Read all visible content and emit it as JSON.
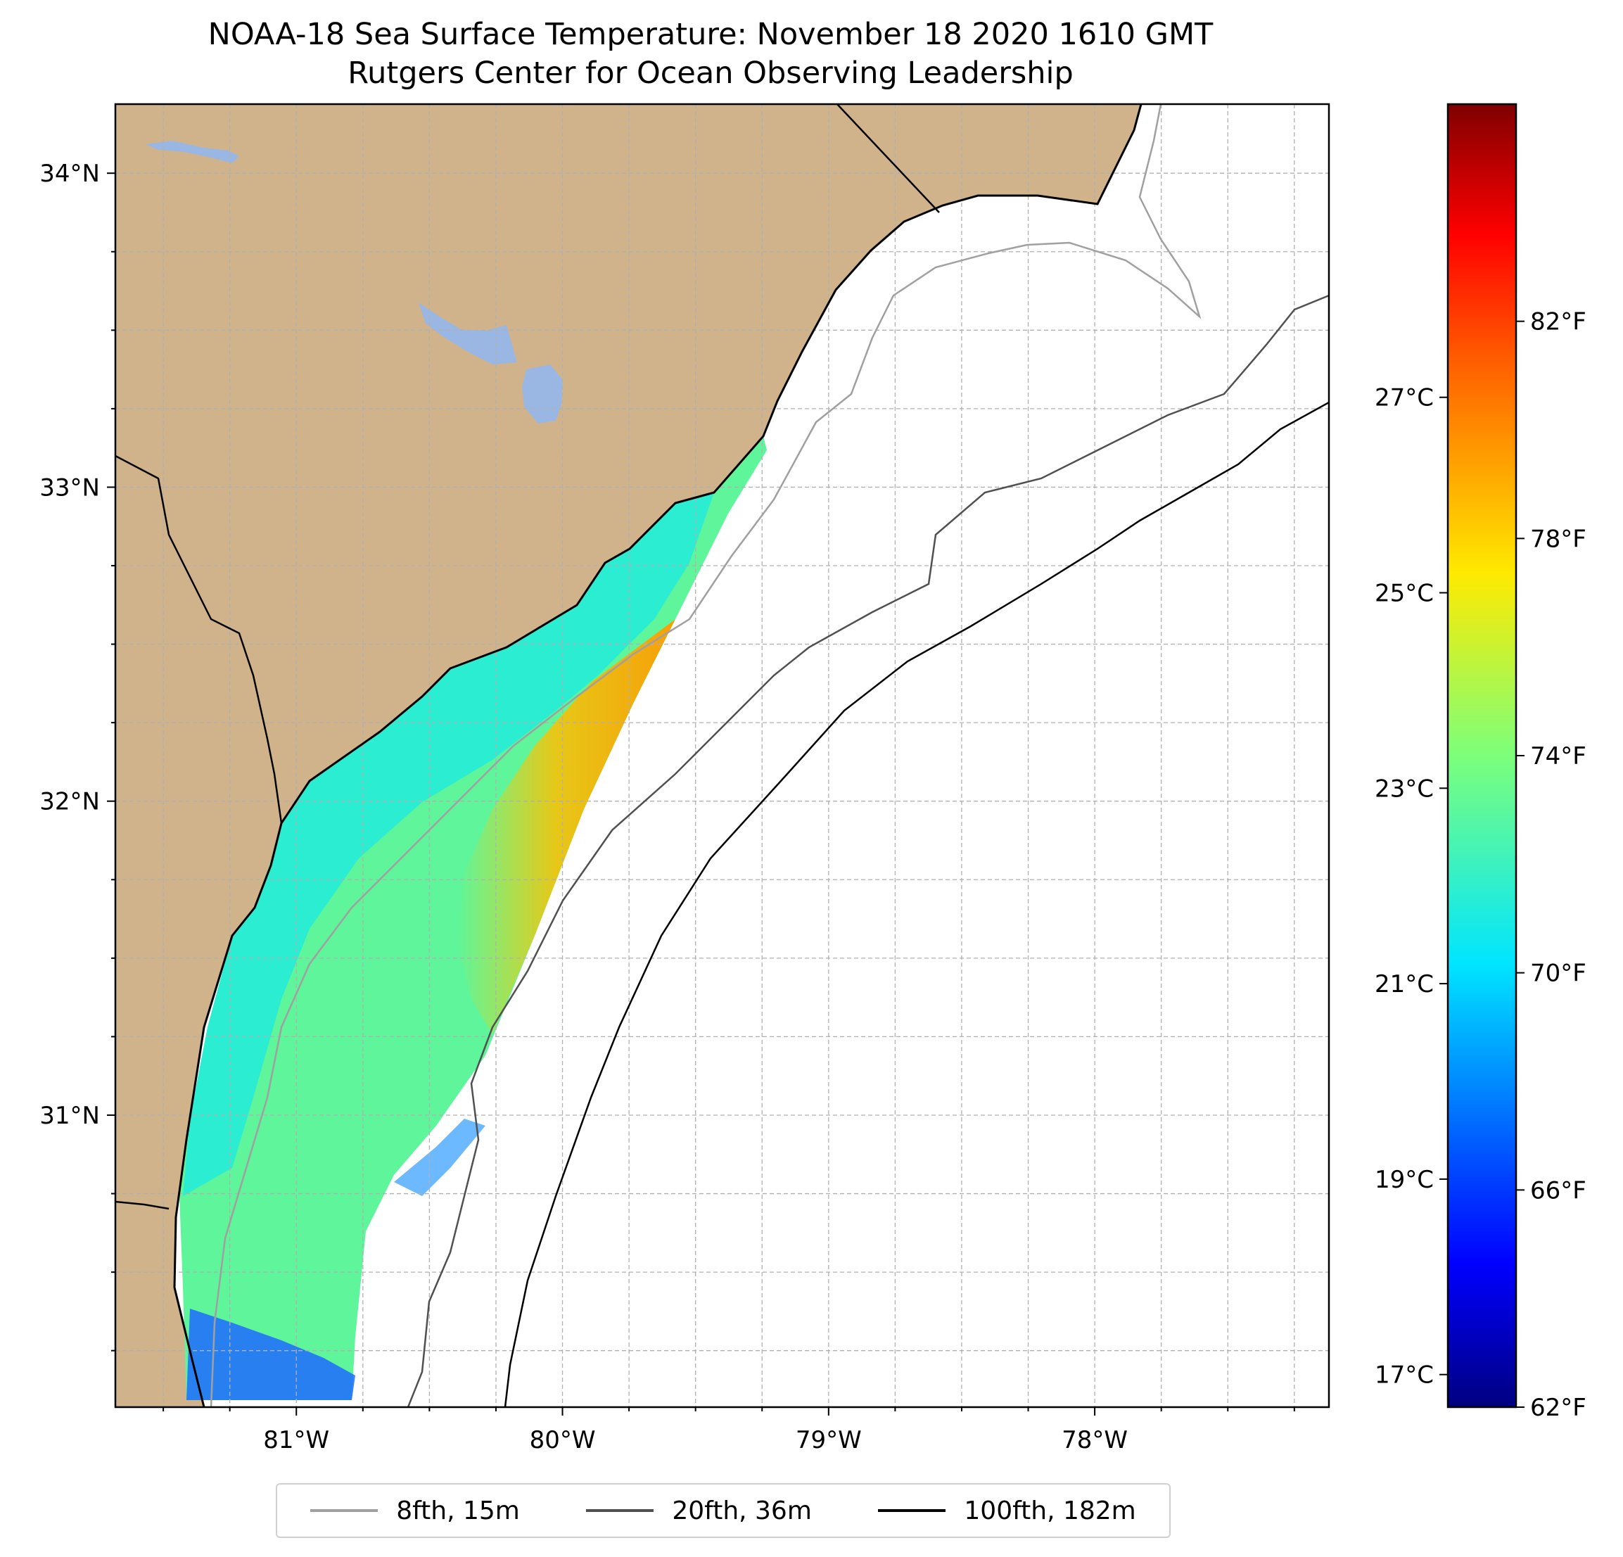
{
  "map": {
    "title": "NOAA-18 Sea Surface Temperature: November 18 2020 1610 GMT",
    "subtitle": "Rutgers Center for Ocean Observing Leadership",
    "extent": {
      "lon_min": -81.68,
      "lon_max": -77.12,
      "lat_min": 30.07,
      "lat_max": 34.22
    },
    "lat_ticks": [
      {
        "value": 34,
        "label": "34°N"
      },
      {
        "value": 33,
        "label": "33°N"
      },
      {
        "value": 32,
        "label": "32°N"
      },
      {
        "value": 31,
        "label": "31°N"
      }
    ],
    "lon_ticks": [
      {
        "value": -81,
        "label": "81°W"
      },
      {
        "value": -80,
        "label": "80°W"
      },
      {
        "value": -79,
        "label": "79°W"
      },
      {
        "value": -78,
        "label": "78°W"
      }
    ],
    "grid": "on",
    "colors": {
      "land": "#d1b38b",
      "water_bodies": "#9ab7e3",
      "ocean": "#ffffff",
      "coastline": "#000000",
      "grid": "#b0b0b0"
    }
  },
  "colorbar": {
    "colormap": "jet",
    "range_f": [
      62,
      86
    ],
    "fahrenheit_ticks": [
      {
        "value": 82,
        "label": "82°F"
      },
      {
        "value": 78,
        "label": "78°F"
      },
      {
        "value": 74,
        "label": "74°F"
      },
      {
        "value": 70,
        "label": "70°F"
      },
      {
        "value": 66,
        "label": "66°F"
      },
      {
        "value": 62,
        "label": "62°F"
      }
    ],
    "celsius_ticks": [
      {
        "value": 27,
        "label": "27°C"
      },
      {
        "value": 25,
        "label": "25°C"
      },
      {
        "value": 23,
        "label": "23°C"
      },
      {
        "value": 21,
        "label": "21°C"
      },
      {
        "value": 19,
        "label": "19°C"
      },
      {
        "value": 17,
        "label": "17°C"
      }
    ]
  },
  "legend": {
    "placement": "bottom-center",
    "items": [
      {
        "label": "8fth, 15m",
        "color": "#a0a0a0"
      },
      {
        "label": "20fth, 36m",
        "color": "#505050"
      },
      {
        "label": "100fth, 182m",
        "color": "#000000"
      }
    ]
  }
}
